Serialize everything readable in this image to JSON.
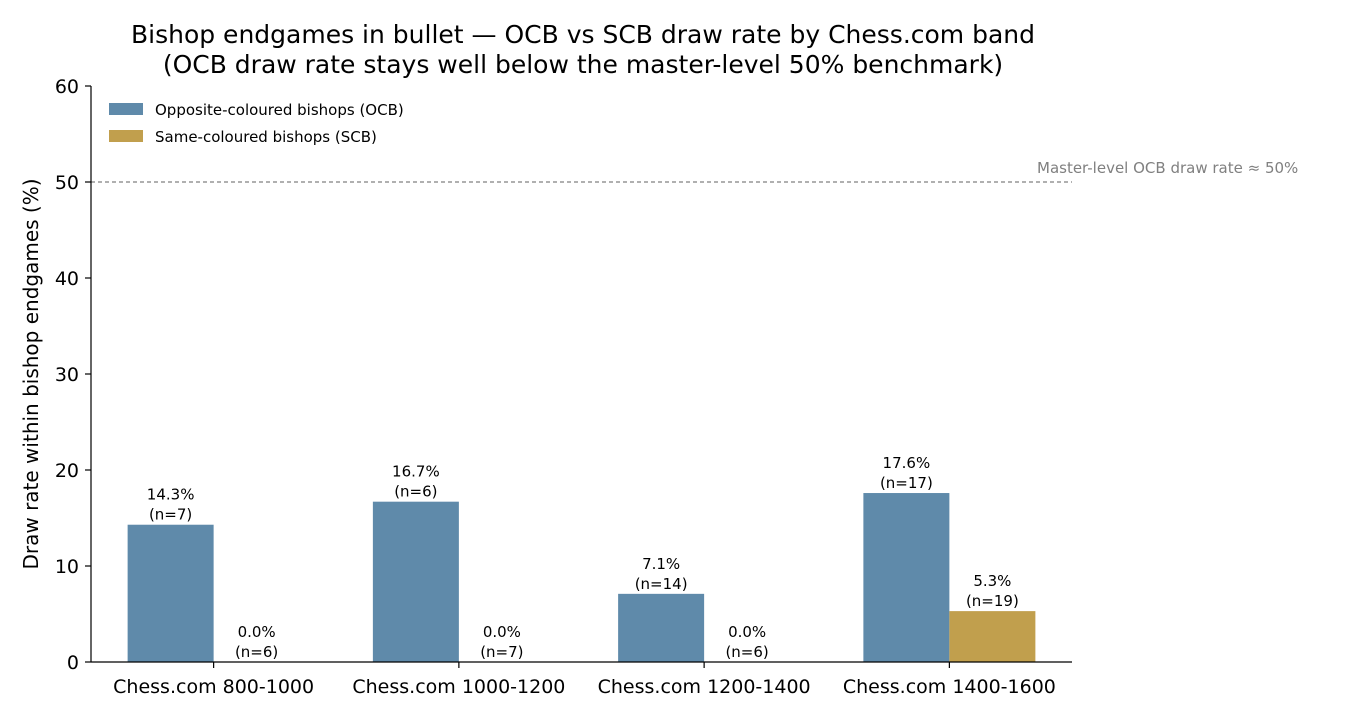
{
  "chart_data": {
    "type": "bar",
    "title": "Bishop endgames in bullet — OCB vs SCB draw rate by Chess.com band",
    "subtitle": "(OCB draw rate stays well below the master-level 50% benchmark)",
    "xlabel": "",
    "ylabel": "Draw rate within bishop endgames (%)",
    "ylim": [
      0,
      60
    ],
    "yticks": [
      "0",
      "10",
      "20",
      "30",
      "40",
      "50",
      "60"
    ],
    "categories": [
      "Chess.com 800-1000",
      "Chess.com 1000-1200",
      "Chess.com 1200-1400",
      "Chess.com 1400-1600"
    ],
    "series": [
      {
        "name": "Opposite-coloured bishops (OCB)",
        "color": "#5f8aaa",
        "values": [
          14.3,
          16.7,
          7.1,
          17.6
        ],
        "labels": [
          "14.3%",
          "16.7%",
          "7.1%",
          "17.6%"
        ],
        "n_labels": [
          "(n=7)",
          "(n=6)",
          "(n=14)",
          "(n=17)"
        ]
      },
      {
        "name": "Same-coloured bishops (SCB)",
        "color": "#c19f4d",
        "values": [
          0.0,
          0.0,
          0.0,
          5.3
        ],
        "labels": [
          "0.0%",
          "0.0%",
          "0.0%",
          "5.3%"
        ],
        "n_labels": [
          "(n=6)",
          "(n=7)",
          "(n=6)",
          "(n=19)"
        ]
      }
    ],
    "reference_line": {
      "value": 50,
      "label": "Master-level OCB draw rate ≈ 50%",
      "color": "#808080",
      "style": "dashed"
    },
    "legend": {
      "position": "top-left"
    },
    "grid": false
  }
}
